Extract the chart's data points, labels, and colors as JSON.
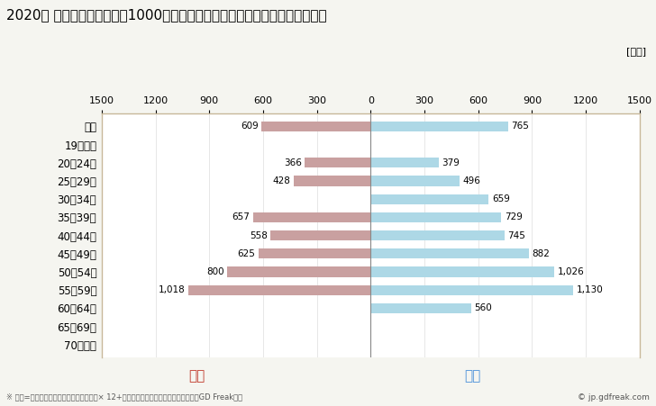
{
  "title": "2020年 民間企業（従業者数1000人以上）フルタイム労働者の男女別平均年収",
  "unit_label": "[万円]",
  "categories": [
    "全体",
    "19歳以下",
    "20〜24歳",
    "25〜29歳",
    "30〜34歳",
    "35〜39歳",
    "40〜44歳",
    "45〜49歳",
    "50〜54歳",
    "55〜59歳",
    "60〜64歳",
    "65〜69歳",
    "70歳以上"
  ],
  "female_values": [
    609,
    0,
    366,
    428,
    0,
    657,
    558,
    625,
    800,
    1018,
    0,
    0,
    0
  ],
  "male_values": [
    765,
    0,
    379,
    496,
    659,
    729,
    745,
    882,
    1026,
    1130,
    560,
    0,
    0
  ],
  "female_color": "#c9a0a0",
  "male_color": "#add8e6",
  "female_label": "女性",
  "male_label": "男性",
  "female_label_color": "#c0392b",
  "male_label_color": "#4a90d9",
  "xlim": 1500,
  "footnote": "※ 年収=「きまって支給する現金給与額」× 12+「年間賞与その他特別給与額」としてGD Freak推計",
  "copyright": "© jp.gdfreak.com",
  "bg_color": "#f5f5f0",
  "plot_bg_color": "#ffffff",
  "border_color": "#c8b89a",
  "title_fontsize": 11,
  "bar_height": 0.55
}
